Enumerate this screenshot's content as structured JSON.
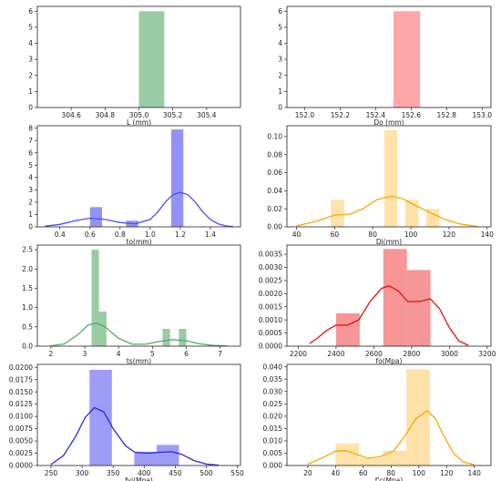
{
  "chart_data": [
    {
      "type": "bar",
      "xlabel": "L (mm)",
      "color": "#55a868",
      "xlim": [
        304.4,
        305.6
      ],
      "ylim": [
        0,
        6.3
      ],
      "xticks": [
        304.6,
        304.8,
        305.0,
        305.2,
        305.4
      ],
      "xtick_labels": [
        "304.6",
        "304.8",
        "305.0",
        "305.2",
        "305.4"
      ],
      "yticks": [
        0,
        1,
        2,
        3,
        4,
        5,
        6
      ],
      "ytick_labels": [
        "0",
        "1",
        "2",
        "3",
        "4",
        "5",
        "6"
      ],
      "bins": [
        {
          "x0": 305.0,
          "x1": 305.15,
          "value": 6
        }
      ],
      "kde": []
    },
    {
      "type": "bar",
      "xlabel": "Do (mm)",
      "color": "#ff6b70",
      "xlim": [
        151.9,
        153.05
      ],
      "ylim": [
        0,
        6.3
      ],
      "xticks": [
        152.0,
        152.2,
        152.4,
        152.6,
        152.8,
        153.0
      ],
      "xtick_labels": [
        "152.0",
        "152.2",
        "152.4",
        "152.6",
        "152.8",
        "153.0"
      ],
      "yticks": [
        0,
        1,
        2,
        3,
        4,
        5,
        6
      ],
      "ytick_labels": [
        "0",
        "1",
        "2",
        "3",
        "4",
        "5",
        "6"
      ],
      "bins": [
        {
          "x0": 152.5,
          "x1": 152.65,
          "value": 6
        }
      ],
      "kde": []
    },
    {
      "type": "bar",
      "xlabel": "to(mm)",
      "color": "#4b4bf0",
      "xlim": [
        0.25,
        1.6
      ],
      "ylim": [
        0,
        8.2
      ],
      "xticks": [
        0.4,
        0.6,
        0.8,
        1.0,
        1.2,
        1.4
      ],
      "xtick_labels": [
        "0.4",
        "0.6",
        "0.8",
        "1.0",
        "1.2",
        "1.4"
      ],
      "yticks": [
        0,
        1,
        2,
        3,
        4,
        5,
        6,
        7,
        8
      ],
      "ytick_labels": [
        "0",
        "1",
        "2",
        "3",
        "4",
        "5",
        "6",
        "7",
        "8"
      ],
      "bins": [
        {
          "x0": 0.6,
          "x1": 0.68,
          "value": 1.6
        },
        {
          "x0": 0.84,
          "x1": 0.92,
          "value": 0.5
        },
        {
          "x0": 1.14,
          "x1": 1.22,
          "value": 7.9
        }
      ],
      "kde": [
        [
          0.3,
          0.05
        ],
        [
          0.4,
          0.2
        ],
        [
          0.5,
          0.5
        ],
        [
          0.6,
          0.7
        ],
        [
          0.7,
          0.6
        ],
        [
          0.8,
          0.35
        ],
        [
          0.9,
          0.25
        ],
        [
          1.0,
          0.6
        ],
        [
          1.05,
          1.2
        ],
        [
          1.1,
          2.0
        ],
        [
          1.15,
          2.6
        ],
        [
          1.2,
          2.8
        ],
        [
          1.25,
          2.6
        ],
        [
          1.3,
          2.0
        ],
        [
          1.35,
          1.2
        ],
        [
          1.4,
          0.6
        ],
        [
          1.45,
          0.25
        ],
        [
          1.5,
          0.08
        ],
        [
          1.55,
          0.02
        ]
      ]
    },
    {
      "type": "bar",
      "xlabel": "Di(mm)",
      "color": "#ffcf72",
      "line_color": "#f4a900",
      "xlim": [
        35,
        142
      ],
      "ylim": [
        0,
        0.112
      ],
      "xticks": [
        40,
        60,
        80,
        100,
        120,
        140
      ],
      "xtick_labels": [
        "40",
        "60",
        "80",
        "100",
        "120",
        "140"
      ],
      "yticks": [
        0,
        0.02,
        0.04,
        0.06,
        0.08,
        0.1
      ],
      "ytick_labels": [
        "0.00",
        "0.02",
        "0.04",
        "0.06",
        "0.08",
        "0.10"
      ],
      "bins": [
        {
          "x0": 58,
          "x1": 65,
          "value": 0.03
        },
        {
          "x0": 86,
          "x1": 93,
          "value": 0.107
        },
        {
          "x0": 97,
          "x1": 104,
          "value": 0.03
        },
        {
          "x0": 108,
          "x1": 115,
          "value": 0.02
        }
      ],
      "kde": [
        [
          40,
          0.001
        ],
        [
          50,
          0.006
        ],
        [
          60,
          0.013
        ],
        [
          68,
          0.014
        ],
        [
          75,
          0.02
        ],
        [
          82,
          0.03
        ],
        [
          90,
          0.034
        ],
        [
          96,
          0.031
        ],
        [
          102,
          0.024
        ],
        [
          110,
          0.016
        ],
        [
          118,
          0.008
        ],
        [
          126,
          0.003
        ],
        [
          135,
          0.0005
        ]
      ]
    },
    {
      "type": "bar",
      "xlabel": "ts(mm)",
      "color": "#55a868",
      "xlim": [
        1.6,
        7.6
      ],
      "ylim": [
        0,
        2.62
      ],
      "xticks": [
        2,
        3,
        4,
        5,
        6,
        7
      ],
      "xtick_labels": [
        "2",
        "3",
        "4",
        "5",
        "6",
        "7"
      ],
      "yticks": [
        0,
        0.5,
        1.0,
        1.5,
        2.0,
        2.5
      ],
      "ytick_labels": [
        "0.0",
        "0.5",
        "1.0",
        "1.5",
        "2.0",
        "2.5"
      ],
      "bins": [
        {
          "x0": 3.2,
          "x1": 3.42,
          "value": 2.5
        },
        {
          "x0": 3.42,
          "x1": 3.64,
          "value": 0.9
        },
        {
          "x0": 5.3,
          "x1": 5.52,
          "value": 0.45
        },
        {
          "x0": 5.78,
          "x1": 6.0,
          "value": 0.45
        }
      ],
      "kde": [
        [
          2.0,
          0.01
        ],
        [
          2.4,
          0.06
        ],
        [
          2.8,
          0.3
        ],
        [
          3.1,
          0.55
        ],
        [
          3.35,
          0.6
        ],
        [
          3.6,
          0.5
        ],
        [
          4.0,
          0.2
        ],
        [
          4.4,
          0.05
        ],
        [
          4.8,
          0.05
        ],
        [
          5.2,
          0.12
        ],
        [
          5.6,
          0.17
        ],
        [
          6.0,
          0.14
        ],
        [
          6.4,
          0.06
        ],
        [
          6.8,
          0.02
        ],
        [
          7.2,
          0.005
        ]
      ]
    },
    {
      "type": "bar",
      "xlabel": "fo(Mpa)",
      "color": "#f05050",
      "line_color": "#e01010",
      "xlim": [
        2140,
        3220
      ],
      "ylim": [
        0,
        0.00385
      ],
      "xticks": [
        2200,
        2400,
        2600,
        2800,
        3000,
        3200
      ],
      "xtick_labels": [
        "2200",
        "2400",
        "2600",
        "2800",
        "3000",
        "3200"
      ],
      "yticks": [
        0,
        0.0005,
        0.001,
        0.0015,
        0.002,
        0.0025,
        0.003,
        0.0035
      ],
      "ytick_labels": [
        "0.0000",
        "0.0005",
        "0.0010",
        "0.0015",
        "0.0020",
        "0.0025",
        "0.0030",
        "0.0035"
      ],
      "bins": [
        {
          "x0": 2400,
          "x1": 2525,
          "value": 0.00125
        },
        {
          "x0": 2650,
          "x1": 2775,
          "value": 0.0037
        },
        {
          "x0": 2775,
          "x1": 2900,
          "value": 0.0029
        }
      ],
      "kde": [
        [
          2260,
          0.0001
        ],
        [
          2300,
          0.0003
        ],
        [
          2350,
          0.0006
        ],
        [
          2400,
          0.0008
        ],
        [
          2460,
          0.0008
        ],
        [
          2520,
          0.001
        ],
        [
          2580,
          0.0017
        ],
        [
          2640,
          0.0022
        ],
        [
          2680,
          0.0023
        ],
        [
          2730,
          0.0021
        ],
        [
          2780,
          0.0017
        ],
        [
          2840,
          0.0017
        ],
        [
          2900,
          0.0018
        ],
        [
          2950,
          0.0014
        ],
        [
          3000,
          0.0007
        ],
        [
          3050,
          0.0002
        ],
        [
          3100,
          3e-05
        ]
      ]
    },
    {
      "type": "bar",
      "xlabel": "fyi(Mpa)",
      "color": "#5c5cf2",
      "line_color": "#2a2ad6",
      "xlim": [
        228,
        555
      ],
      "ylim": [
        0,
        0.0206
      ],
      "xticks": [
        250,
        300,
        350,
        400,
        450,
        500,
        550
      ],
      "xtick_labels": [
        "250",
        "300",
        "350",
        "400",
        "450",
        "500",
        "550"
      ],
      "yticks": [
        0,
        0.0025,
        0.005,
        0.0075,
        0.01,
        0.0125,
        0.015,
        0.0175,
        0.02
      ],
      "ytick_labels": [
        "0.0000",
        "0.0025",
        "0.0050",
        "0.0075",
        "0.0100",
        "0.0125",
        "0.0150",
        "0.0175",
        "0.0200"
      ],
      "bins": [
        {
          "x0": 312,
          "x1": 348,
          "value": 0.0195
        },
        {
          "x0": 384,
          "x1": 420,
          "value": 0.0028
        },
        {
          "x0": 420,
          "x1": 456,
          "value": 0.0042
        }
      ],
      "kde": [
        [
          250,
          0.0002
        ],
        [
          270,
          0.002
        ],
        [
          290,
          0.006
        ],
        [
          305,
          0.0098
        ],
        [
          320,
          0.0118
        ],
        [
          335,
          0.0109
        ],
        [
          350,
          0.0075
        ],
        [
          370,
          0.004
        ],
        [
          385,
          0.0027
        ],
        [
          405,
          0.0025
        ],
        [
          425,
          0.0027
        ],
        [
          445,
          0.0028
        ],
        [
          460,
          0.0023
        ],
        [
          480,
          0.001
        ],
        [
          500,
          0.0003
        ],
        [
          520,
          5e-05
        ]
      ]
    },
    {
      "type": "bar",
      "xlabel": "f'c(Mpa)",
      "color": "#ffcf72",
      "line_color": "#f4a900",
      "xlim": [
        5,
        152
      ],
      "ylim": [
        0,
        0.041
      ],
      "xticks": [
        20,
        40,
        60,
        80,
        100,
        120,
        140
      ],
      "xtick_labels": [
        "20",
        "40",
        "60",
        "80",
        "100",
        "120",
        "140"
      ],
      "yticks": [
        0,
        0.005,
        0.01,
        0.015,
        0.02,
        0.025,
        0.03,
        0.035,
        0.04
      ],
      "ytick_labels": [
        "0.000",
        "0.005",
        "0.010",
        "0.015",
        "0.020",
        "0.025",
        "0.030",
        "0.035",
        "0.040"
      ],
      "bins": [
        {
          "x0": 40,
          "x1": 57,
          "value": 0.009
        },
        {
          "x0": 57,
          "x1": 74,
          "value": 0.003
        },
        {
          "x0": 74,
          "x1": 91,
          "value": 0.006
        },
        {
          "x0": 91,
          "x1": 108,
          "value": 0.039
        }
      ],
      "kde": [
        [
          20,
          0.0005
        ],
        [
          30,
          0.003
        ],
        [
          40,
          0.0058
        ],
        [
          48,
          0.006
        ],
        [
          55,
          0.0045
        ],
        [
          63,
          0.003
        ],
        [
          72,
          0.0035
        ],
        [
          82,
          0.006
        ],
        [
          90,
          0.012
        ],
        [
          98,
          0.019
        ],
        [
          106,
          0.0222
        ],
        [
          112,
          0.019
        ],
        [
          118,
          0.012
        ],
        [
          125,
          0.005
        ],
        [
          132,
          0.0015
        ],
        [
          140,
          0.0003
        ]
      ]
    }
  ]
}
